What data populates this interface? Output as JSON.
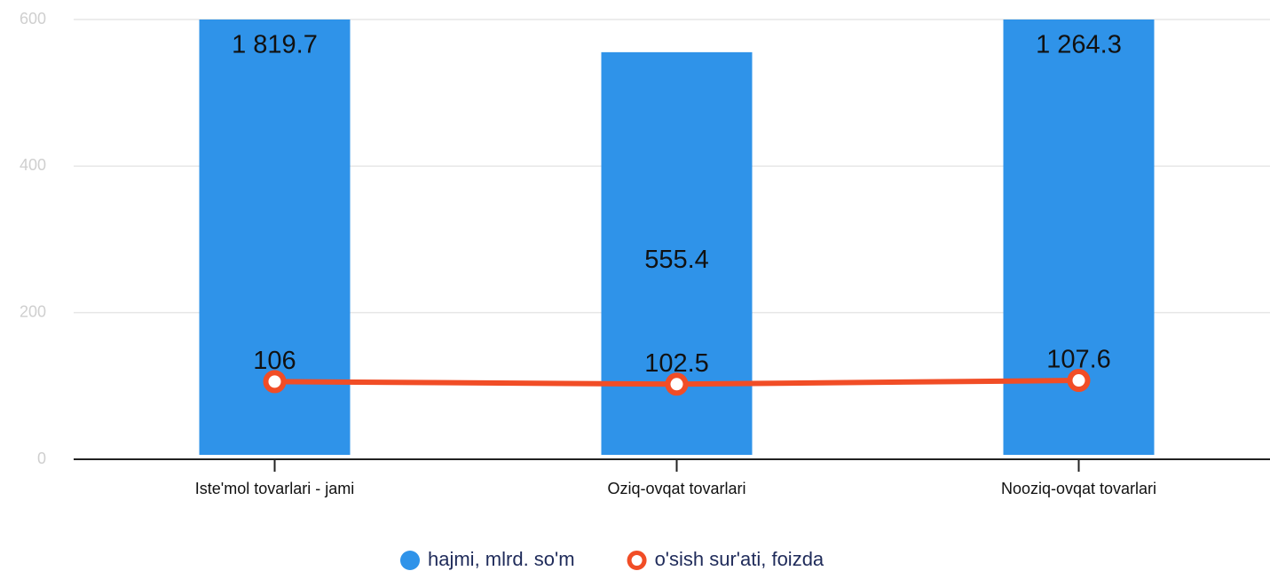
{
  "chart_data": {
    "type": "bar",
    "categories": [
      "Iste'mol tovarlari - jami",
      "Oziq-ovqat tovarlari",
      "Nooziq-ovqat tovarlari"
    ],
    "series": [
      {
        "name": "hajmi, mlrd. so'm",
        "color": "#2f93e9",
        "type": "bar",
        "values": [
          1819.7,
          555.4,
          1264.3
        ],
        "value_labels": [
          "1 819.7",
          "555.4",
          "1 264.3"
        ]
      },
      {
        "name": "o'sish sur'ati, foizda",
        "color": "#f14d26",
        "type": "line",
        "values": [
          106,
          102.5,
          107.6
        ]
      }
    ],
    "ylim": [
      0,
      600
    ],
    "yticks": [
      0,
      200,
      400,
      600
    ],
    "grid": true,
    "legend": "bottom"
  }
}
